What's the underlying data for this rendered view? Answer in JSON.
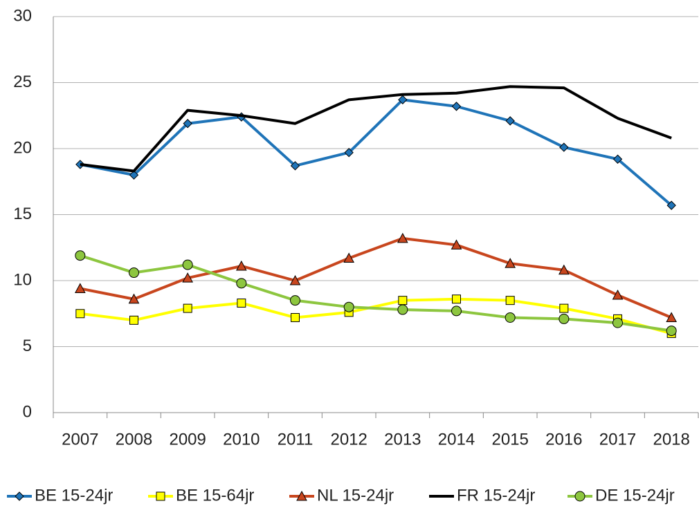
{
  "chart_data": {
    "type": "line",
    "categories": [
      "2007",
      "2008",
      "2009",
      "2010",
      "2011",
      "2012",
      "2013",
      "2014",
      "2015",
      "2016",
      "2017",
      "2018"
    ],
    "ylim": [
      0,
      30
    ],
    "yticks": [
      0,
      5,
      10,
      15,
      20,
      25,
      30
    ],
    "grid": true,
    "legend": "bottom",
    "series": [
      {
        "name": "BE 15-24jr",
        "color": "#1f74b8",
        "marker": "diamond",
        "values": [
          18.8,
          18.0,
          21.9,
          22.4,
          18.7,
          19.7,
          23.7,
          23.2,
          22.1,
          20.1,
          19.2,
          15.7
        ]
      },
      {
        "name": "BE 15-64jr",
        "color": "#ffff00",
        "marker": "square",
        "values": [
          7.5,
          7.0,
          7.9,
          8.3,
          7.2,
          7.6,
          8.5,
          8.6,
          8.5,
          7.9,
          7.1,
          6.0
        ]
      },
      {
        "name": "NL 15-24jr",
        "color": "#c8461e",
        "marker": "triangle",
        "values": [
          9.4,
          8.6,
          10.2,
          11.1,
          10.0,
          11.7,
          13.2,
          12.7,
          11.3,
          10.8,
          8.9,
          7.2
        ]
      },
      {
        "name": "FR 15-24jr",
        "color": "#000000",
        "marker": "none",
        "values": [
          18.8,
          18.3,
          22.9,
          22.5,
          21.9,
          23.7,
          24.1,
          24.2,
          24.7,
          24.6,
          22.3,
          20.8
        ]
      },
      {
        "name": "DE 15-24jr",
        "color": "#8dc63f",
        "marker": "circle",
        "values": [
          11.9,
          10.6,
          11.2,
          9.8,
          8.5,
          8.0,
          7.8,
          7.7,
          7.2,
          7.1,
          6.8,
          6.2
        ]
      }
    ]
  }
}
